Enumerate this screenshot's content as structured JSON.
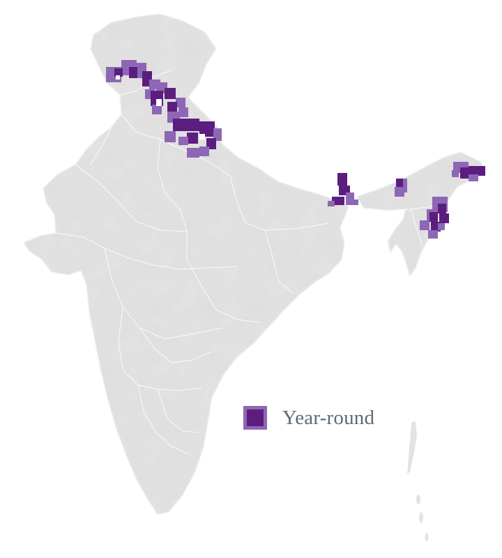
{
  "map": {
    "colors": {
      "land": "#e3e3e3",
      "land_stroke": "#f4f4f4",
      "borders": "#ffffff",
      "year_round_core": "#5b1e7e",
      "year_round_edge": "#8d67b5"
    },
    "legend": {
      "label": "Year-round"
    }
  }
}
